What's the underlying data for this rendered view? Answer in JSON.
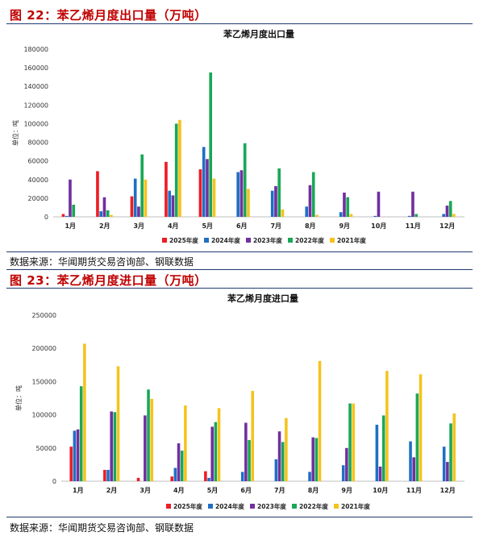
{
  "figures": [
    {
      "label": "图 22：苯乙烯月度出口量（万吨）",
      "source": "数据来源：华闻期货交易咨询部、钢联数据"
    },
    {
      "label": "图 23：苯乙烯月度进口量（万吨）",
      "source": "数据来源：华闻期货交易咨询部、钢联数据"
    }
  ],
  "chart_data": [
    {
      "type": "bar",
      "title": "苯乙烯月度出口量",
      "ylabel": "单位：吨",
      "ylim": [
        0,
        180000
      ],
      "yticks": [
        0,
        20000,
        40000,
        60000,
        80000,
        100000,
        120000,
        140000,
        160000,
        180000
      ],
      "categories": [
        "1月",
        "2月",
        "3月",
        "4月",
        "5月",
        "6月",
        "7月",
        "8月",
        "9月",
        "10月",
        "11月",
        "12月"
      ],
      "grid": false,
      "legend": "bottom",
      "series": [
        {
          "name": "2025年度",
          "color": "#ee1c25",
          "values": [
            3000,
            49000,
            22000,
            59000,
            51000,
            null,
            null,
            null,
            null,
            null,
            null,
            null
          ]
        },
        {
          "name": "2024年度",
          "color": "#1f6fc4",
          "values": [
            1000,
            6000,
            41000,
            28000,
            75000,
            48000,
            28000,
            11000,
            5000,
            1000,
            1000,
            3000
          ]
        },
        {
          "name": "2023年度",
          "color": "#7030a0",
          "values": [
            40000,
            21000,
            11000,
            23000,
            62000,
            50000,
            33000,
            34000,
            26000,
            27000,
            27000,
            12000
          ]
        },
        {
          "name": "2022年度",
          "color": "#1aa757",
          "values": [
            13000,
            7000,
            67000,
            100000,
            155000,
            79000,
            52000,
            48000,
            21000,
            0,
            3000,
            17000
          ]
        },
        {
          "name": "2021年度",
          "color": "#f5c31c",
          "values": [
            0,
            2000,
            40000,
            104000,
            41000,
            30000,
            8000,
            2000,
            3000,
            0,
            0,
            3000
          ]
        }
      ]
    },
    {
      "type": "bar",
      "title": "苯乙烯月度进口量",
      "ylabel": "单位：吨",
      "ylim": [
        0,
        250000
      ],
      "yticks": [
        0,
        50000,
        100000,
        150000,
        200000,
        250000
      ],
      "categories": [
        "1月",
        "2月",
        "3月",
        "4月",
        "5月",
        "6月",
        "7月",
        "8月",
        "9月",
        "10月",
        "11月",
        "12月"
      ],
      "grid": false,
      "legend": "bottom",
      "series": [
        {
          "name": "2025年度",
          "color": "#ee1c25",
          "values": [
            52000,
            17000,
            5000,
            7000,
            15000,
            null,
            null,
            null,
            null,
            null,
            null,
            null
          ]
        },
        {
          "name": "2024年度",
          "color": "#1f6fc4",
          "values": [
            76000,
            17000,
            0,
            20000,
            5000,
            14000,
            33000,
            14000,
            24000,
            85000,
            60000,
            52000
          ]
        },
        {
          "name": "2023年度",
          "color": "#7030a0",
          "values": [
            78000,
            105000,
            99000,
            57000,
            82000,
            88000,
            75000,
            66000,
            50000,
            22000,
            36000,
            29000
          ]
        },
        {
          "name": "2022年度",
          "color": "#1aa757",
          "values": [
            143000,
            104000,
            138000,
            46000,
            89000,
            62000,
            59000,
            65000,
            117000,
            99000,
            132000,
            87000
          ]
        },
        {
          "name": "2021年度",
          "color": "#f5c31c",
          "values": [
            207000,
            173000,
            124000,
            114000,
            110000,
            136000,
            95000,
            181000,
            117000,
            166000,
            161000,
            102000
          ]
        }
      ]
    }
  ]
}
